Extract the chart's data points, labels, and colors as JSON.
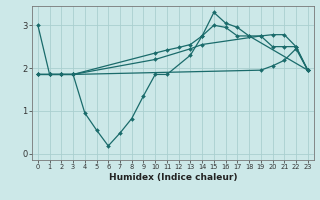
{
  "xlabel": "Humidex (Indice chaleur)",
  "bg_color": "#cce8e8",
  "grid_color": "#aacfcf",
  "line_color": "#1a6b6b",
  "xlim": [
    -0.5,
    23.5
  ],
  "ylim": [
    -0.15,
    3.45
  ],
  "xticks": [
    0,
    1,
    2,
    3,
    4,
    5,
    6,
    7,
    8,
    9,
    10,
    11,
    12,
    13,
    14,
    15,
    16,
    17,
    18,
    19,
    20,
    21,
    22,
    23
  ],
  "yticks": [
    0,
    1,
    2,
    3
  ],
  "line1_x": [
    0,
    1,
    2,
    3,
    4,
    5,
    6,
    7,
    8,
    9,
    10,
    11,
    13,
    14,
    15,
    16,
    17,
    18,
    23
  ],
  "line1_y": [
    3.0,
    1.85,
    1.85,
    1.85,
    0.95,
    0.55,
    0.18,
    0.48,
    0.82,
    1.35,
    1.85,
    1.85,
    2.3,
    2.75,
    3.3,
    3.05,
    2.95,
    2.75,
    1.95
  ],
  "line2_x": [
    0,
    1,
    2,
    3,
    10,
    11,
    12,
    13,
    14,
    15,
    16,
    17,
    18,
    19,
    20,
    21,
    22,
    23
  ],
  "line2_y": [
    1.85,
    1.85,
    1.85,
    1.85,
    2.35,
    2.42,
    2.48,
    2.55,
    2.75,
    3.0,
    2.95,
    2.75,
    2.75,
    2.75,
    2.5,
    2.5,
    2.5,
    1.95
  ],
  "line3_x": [
    0,
    1,
    2,
    3,
    10,
    13,
    14,
    19,
    20,
    21,
    22,
    23
  ],
  "line3_y": [
    1.85,
    1.85,
    1.85,
    1.85,
    2.2,
    2.45,
    2.55,
    2.75,
    2.78,
    2.78,
    2.5,
    1.95
  ],
  "line4_x": [
    0,
    1,
    2,
    3,
    19,
    20,
    21,
    22,
    23
  ],
  "line4_y": [
    1.85,
    1.85,
    1.85,
    1.85,
    1.95,
    2.05,
    2.18,
    2.45,
    1.95
  ]
}
